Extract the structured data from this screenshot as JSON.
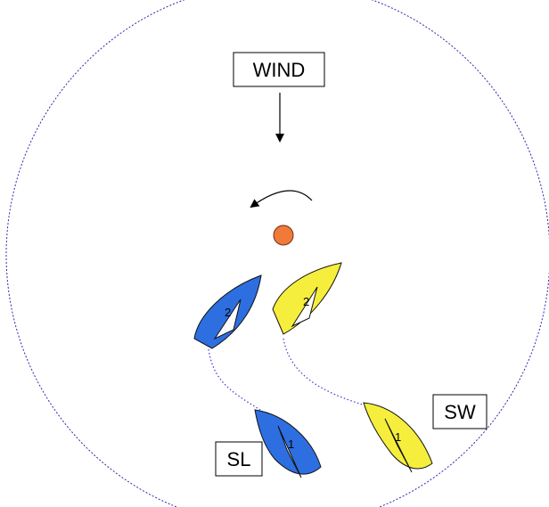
{
  "colors": {
    "circle": "#2b2bb0",
    "track": "#3a3ad0",
    "mark": "#f07a3a",
    "blue_boat": "#2d6fe0",
    "yellow_boat": "#f6ee3c",
    "outline": "#111111"
  },
  "labels": {
    "wind": "WIND",
    "starboard_leeward": "SL",
    "starboard_windward": "SW"
  },
  "boats": {
    "blue_position_1": "1",
    "blue_position_2": "2",
    "yellow_position_1": "1",
    "yellow_position_2": "2"
  },
  "icons": {
    "wind_arrow": "arrow-down-icon",
    "rotation": "curved-arrow-left-icon",
    "mark": "orange-circle-mark"
  }
}
